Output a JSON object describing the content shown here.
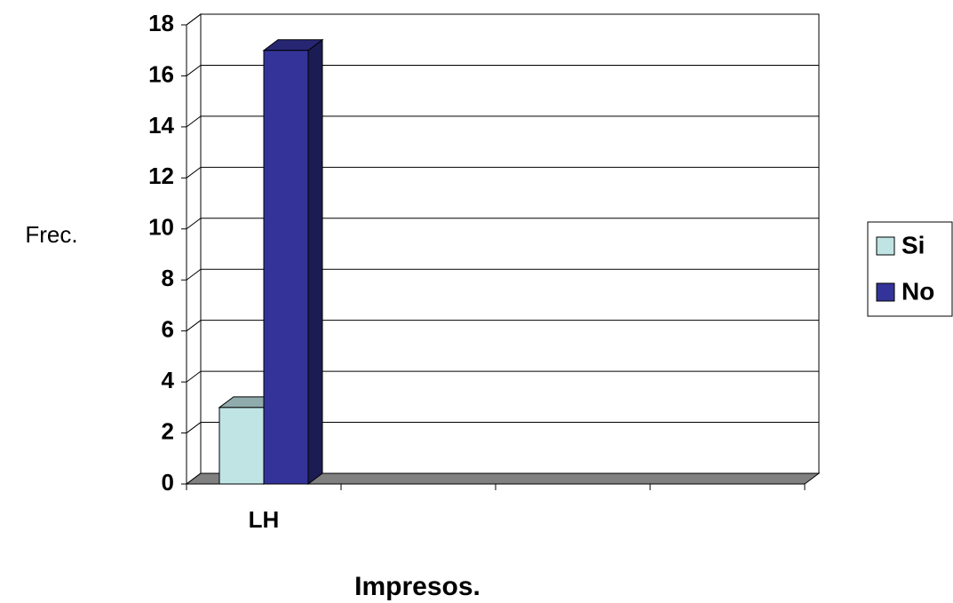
{
  "chart_data": {
    "type": "bar3d",
    "categories": [
      "LH",
      null,
      null,
      null
    ],
    "series": [
      {
        "name": "Si",
        "color": "#c0e4e4",
        "values": [
          3,
          null,
          null,
          null
        ]
      },
      {
        "name": "No",
        "color": "#333399",
        "values": [
          17,
          null,
          null,
          null
        ]
      }
    ],
    "ylabel": "Frec.",
    "xlabel": "Impresos.",
    "ylim": [
      0,
      18
    ],
    "yticks": [
      0,
      2,
      4,
      6,
      8,
      10,
      12,
      14,
      16,
      18
    ],
    "grid": true,
    "legend": "right"
  }
}
